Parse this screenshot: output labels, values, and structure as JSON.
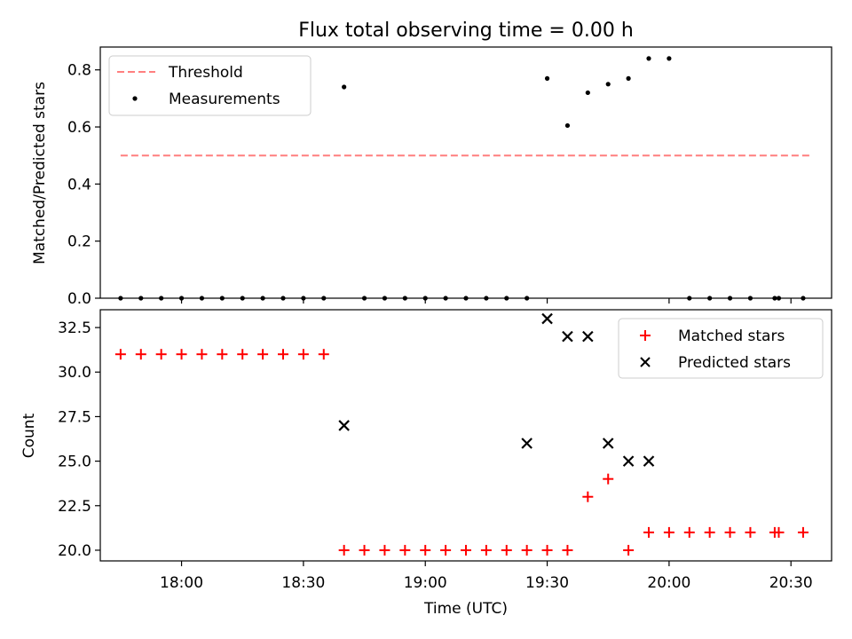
{
  "chart_data": [
    {
      "type": "scatter",
      "title": "Flux total observing time = 0.00 h",
      "xlabel": "",
      "ylabel": "Matched/Predicted stars",
      "xlim": [
        1060,
        1240
      ],
      "ylim": [
        0,
        0.88
      ],
      "yticks": [
        0.0,
        0.2,
        0.4,
        0.6,
        0.8
      ],
      "ytick_labels": [
        "0.0",
        "0.2",
        "0.4",
        "0.6",
        "0.8"
      ],
      "xticks": [
        1080,
        1110,
        1140,
        1170,
        1200,
        1230
      ],
      "legend_position": "top-left",
      "threshold": {
        "name": "Threshold",
        "value": 0.5,
        "x_range": [
          1065,
          1235
        ],
        "color": "#ff7f7f"
      },
      "series": [
        {
          "name": "Measurements",
          "color": "#000000",
          "x": [
            1065,
            1070,
            1075,
            1080,
            1085,
            1090,
            1095,
            1100,
            1105,
            1110,
            1115,
            1120,
            1125,
            1130,
            1135,
            1140,
            1145,
            1150,
            1155,
            1160,
            1165,
            1170,
            1175,
            1180,
            1185,
            1190,
            1195,
            1200,
            1205,
            1210,
            1215,
            1220,
            1226,
            1227,
            1233
          ],
          "y": [
            0,
            0,
            0,
            0,
            0,
            0,
            0,
            0,
            0,
            0,
            0,
            0.74,
            0,
            0,
            0,
            0,
            0,
            0,
            0,
            0,
            0,
            0.77,
            0.605,
            0.72,
            0.75,
            0.77,
            0.84,
            0.84,
            0,
            0,
            0,
            0,
            0,
            0,
            0
          ]
        }
      ]
    },
    {
      "type": "scatter",
      "xlabel": "Time (UTC)",
      "ylabel": "Count",
      "xlim": [
        1060,
        1240
      ],
      "ylim": [
        19.4,
        33.5
      ],
      "yticks": [
        20.0,
        22.5,
        25.0,
        27.5,
        30.0,
        32.5
      ],
      "ytick_labels": [
        "20.0",
        "22.5",
        "25.0",
        "27.5",
        "30.0",
        "32.5"
      ],
      "xticks": [
        1080,
        1110,
        1140,
        1170,
        1200,
        1230
      ],
      "xtick_labels": [
        "18:00",
        "18:30",
        "19:00",
        "19:30",
        "20:00",
        "20:30"
      ],
      "legend_position": "top-right",
      "series": [
        {
          "name": "Matched stars",
          "marker": "+",
          "color": "#ff0000",
          "x": [
            1065,
            1070,
            1075,
            1080,
            1085,
            1090,
            1095,
            1100,
            1105,
            1110,
            1115,
            1120,
            1125,
            1130,
            1135,
            1140,
            1145,
            1150,
            1155,
            1160,
            1165,
            1170,
            1175,
            1180,
            1185,
            1190,
            1195,
            1200,
            1205,
            1210,
            1215,
            1220,
            1226,
            1227,
            1233
          ],
          "y": [
            31,
            31,
            31,
            31,
            31,
            31,
            31,
            31,
            31,
            31,
            31,
            20,
            20,
            20,
            20,
            20,
            20,
            20,
            20,
            20,
            20,
            20,
            20,
            23,
            24,
            20,
            21,
            21,
            21,
            21,
            21,
            21,
            21,
            21,
            21
          ]
        },
        {
          "name": "Predicted stars",
          "marker": "x",
          "color": "#000000",
          "x": [
            1120,
            1165,
            1170,
            1175,
            1180,
            1185,
            1190,
            1195
          ],
          "y": [
            27,
            26,
            33,
            32,
            32,
            26,
            25,
            25
          ]
        }
      ]
    }
  ]
}
